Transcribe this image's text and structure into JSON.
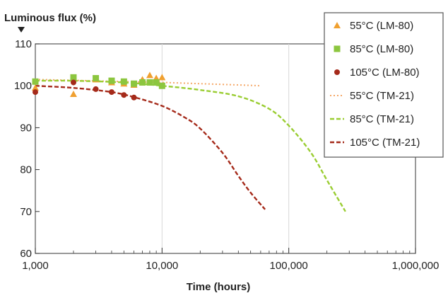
{
  "chart_data": {
    "type": "scatter",
    "title": "",
    "xlabel": "Time (hours)",
    "ylabel": "Luminous flux (%)",
    "x_scale": "log",
    "xlim": [
      1000,
      1000000
    ],
    "ylim": [
      60,
      110
    ],
    "x_ticks": [
      1000,
      10000,
      100000,
      1000000
    ],
    "x_tick_labels": [
      "1,000",
      "10,000",
      "100,000",
      "1,000,000"
    ],
    "y_ticks": [
      60,
      70,
      80,
      90,
      100,
      110
    ],
    "y_tick_labels": [
      "60",
      "70",
      "80",
      "90",
      "100",
      "110"
    ],
    "vertical_gridlines_at": [
      10000,
      100000
    ],
    "legend_position": "top-right",
    "series": [
      {
        "name": "55°C (LM-80)",
        "style": "marker",
        "marker": "triangle",
        "color": "#f0a030",
        "x": [
          1000,
          2000,
          3000,
          4000,
          5000,
          6000,
          7000,
          8000,
          9000,
          10000
        ],
        "y": [
          99.5,
          98.0,
          101.5,
          100.8,
          100.5,
          100.2,
          101.5,
          102.5,
          101.8,
          102.0
        ]
      },
      {
        "name": "85°C (LM-80)",
        "style": "marker",
        "marker": "square",
        "color": "#8cc63f",
        "x": [
          1000,
          2000,
          3000,
          4000,
          5000,
          6000,
          7000,
          8000,
          9000,
          10000
        ],
        "y": [
          101.0,
          102.0,
          101.8,
          101.2,
          101.0,
          100.5,
          100.8,
          100.8,
          100.8,
          100.0
        ]
      },
      {
        "name": "105°C (LM-80)",
        "style": "marker",
        "marker": "circle",
        "color": "#a52a1a",
        "x": [
          1000,
          2000,
          3000,
          4000,
          5000,
          6000
        ],
        "y": [
          98.5,
          100.8,
          99.2,
          98.5,
          97.8,
          97.2
        ]
      },
      {
        "name": "55°C (TM-21)",
        "style": "dotted",
        "color": "#f5a868",
        "x": [
          1000,
          2000,
          5000,
          10000,
          20000,
          40000,
          60000
        ],
        "y": [
          101.5,
          101.3,
          101.0,
          100.8,
          100.5,
          100.2,
          100.0
        ]
      },
      {
        "name": "85°C (TM-21)",
        "style": "dashed",
        "color": "#9acd32",
        "x": [
          1000,
          2000,
          5000,
          10000,
          20000,
          40000,
          70000,
          100000,
          150000,
          200000,
          280000
        ],
        "y": [
          101.2,
          101.2,
          100.8,
          100.0,
          99.0,
          97.5,
          94.5,
          90.5,
          84.0,
          77.5,
          70.0
        ]
      },
      {
        "name": "105°C (TM-21)",
        "style": "dashed",
        "color": "#a52a1a",
        "x": [
          1000,
          2000,
          4000,
          6000,
          10000,
          15000,
          20000,
          30000,
          40000,
          50000,
          65000
        ],
        "y": [
          100.0,
          99.5,
          98.5,
          97.3,
          95.2,
          92.5,
          89.8,
          84.0,
          78.5,
          74.5,
          70.5
        ]
      }
    ]
  }
}
